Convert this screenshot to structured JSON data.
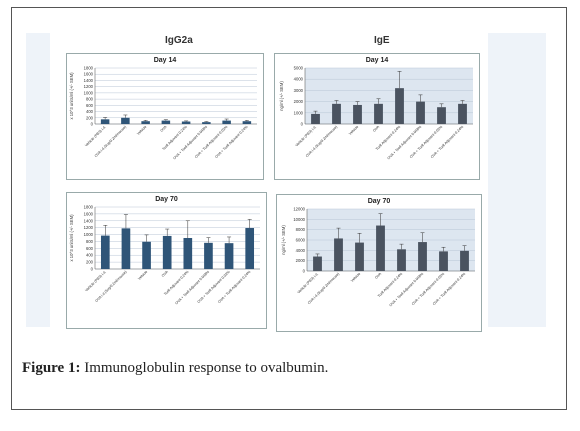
{
  "figure": {
    "caption_label": "Figure 1:",
    "caption_text": " Immunoglobulin response to ovalbumin.",
    "left_column_title": "IgG2a",
    "right_column_title": "IgE"
  },
  "colors": {
    "bar": "#2f5578",
    "bar_igE": "#4a5360",
    "panel_bg_igE": "#dde6f0",
    "grid": "#b9c6d6"
  },
  "chart_data": [
    {
      "type": "bar",
      "title": "Day 14",
      "ylabel": "x 10^3 units/ml (+/- SEM)",
      "ylim": [
        0,
        1800
      ],
      "yticks": [
        "0",
        "200",
        "400",
        "600",
        "800",
        "1000",
        "1200",
        "1400",
        "1600",
        "1800"
      ],
      "categories": [
        "Vehicle (PBS) i.d.",
        "OVA i.d.(5ug/0.2ml/mouse)",
        "Vehicle",
        "OVA",
        "Tcell Adjuvant 0.24%",
        "OVA + Tcell Adjuvant 0.048%",
        "OVA + Tcell Adjuvant 0.02%",
        "OVA + Tcell Adjuvant 0.24%"
      ],
      "values": [
        150,
        200,
        90,
        110,
        80,
        60,
        110,
        90
      ],
      "errors": [
        60,
        90,
        30,
        30,
        20,
        20,
        50,
        30
      ],
      "panel": "igg2a"
    },
    {
      "type": "bar",
      "title": "Day 14",
      "ylabel": "ng/ml (+/- SEM)",
      "ylim": [
        0,
        5000
      ],
      "yticks": [
        "0",
        "1000",
        "2000",
        "3000",
        "4000",
        "5000"
      ],
      "categories": [
        "Vehicle (PBS) i.d.",
        "OVA i.d.(5ug/0.2ml/mouse)",
        "Vehicle",
        "OVA",
        "Tcell Adjuvant 0.24%",
        "OVA + Tcell Adjuvant 0.048%",
        "OVA + Tcell Adjuvant 0.02%",
        "OVA + Tcell Adjuvant 0.24%"
      ],
      "values": [
        900,
        1800,
        1700,
        1800,
        3200,
        2000,
        1500,
        1800
      ],
      "errors": [
        250,
        300,
        300,
        450,
        1500,
        600,
        300,
        300
      ],
      "panel": "ige"
    },
    {
      "type": "bar",
      "title": "Day 70",
      "ylabel": "x 10^3 units/ml (+/- SEM)",
      "ylim": [
        0,
        1800
      ],
      "yticks": [
        "0",
        "200",
        "400",
        "600",
        "800",
        "1000",
        "1200",
        "1400",
        "1600",
        "1800"
      ],
      "categories": [
        "Vehicle (PBS) i.d.",
        "OVA i.d.(5ug/0.2ml/mouse)",
        "Vehicle",
        "OVA",
        "Tcell Adjuvant 0.24%",
        "OVA + Tcell Adjuvant 0.048%",
        "OVA + Tcell Adjuvant 0.02%",
        "OVA + Tcell Adjuvant 0.24%"
      ],
      "values": [
        970,
        1180,
        790,
        960,
        900,
        760,
        750,
        1190
      ],
      "errors": [
        300,
        400,
        200,
        200,
        500,
        150,
        180,
        250
      ],
      "panel": "igg2a"
    },
    {
      "type": "bar",
      "title": "Day 70",
      "ylabel": "ng/ml (+/- SEM)",
      "ylim": [
        0,
        12000
      ],
      "yticks": [
        "0",
        "2000",
        "4000",
        "6000",
        "8000",
        "10000",
        "12000"
      ],
      "categories": [
        "Vehicle (PBS) i.d.",
        "OVA i.d.(5ug/0.2ml/mouse)",
        "Vehicle",
        "OVA",
        "Tcell Adjuvant 0.24%",
        "OVA + Tcell Adjuvant 0.048%",
        "OVA + Tcell Adjuvant 0.02%",
        "OVA + Tcell Adjuvant 0.24%"
      ],
      "values": [
        2800,
        6300,
        5500,
        8800,
        4200,
        5600,
        3800,
        3900
      ],
      "errors": [
        500,
        2000,
        1800,
        2300,
        1000,
        1800,
        800,
        1000
      ],
      "panel": "ige"
    }
  ]
}
